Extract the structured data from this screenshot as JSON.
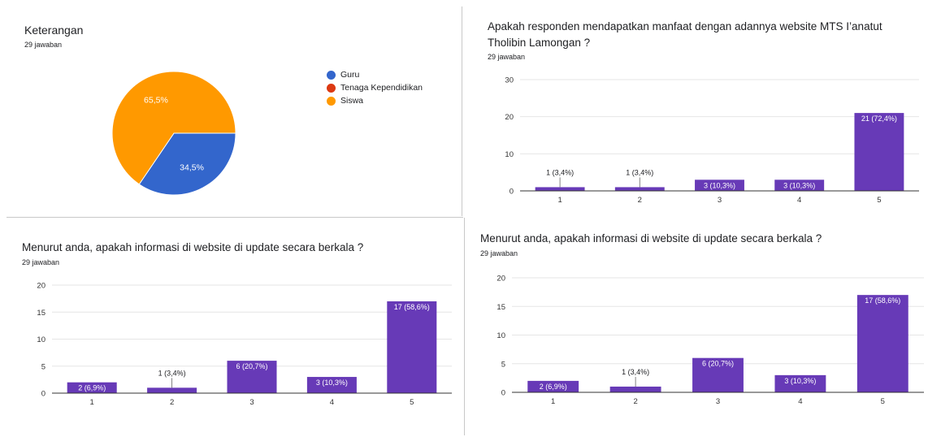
{
  "panels": [
    {
      "title": "Keterangan",
      "subtitle": "29 jawaban"
    },
    {
      "title": "Apakah responden mendapatkan manfaat dengan adannya website MTS I’anatut Tholibin Lamongan ?",
      "subtitle": "29 jawaban"
    },
    {
      "title": "Menurut anda, apakah informasi di website di update secara berkala ?",
      "subtitle": "29 jawaban"
    },
    {
      "title": "Menurut anda, apakah informasi di website di update secara berkala ?",
      "subtitle": "29 jawaban"
    }
  ],
  "colors": {
    "bar": "#673ab7",
    "guru": "#3366cc",
    "tenaga": "#dc3912",
    "siswa": "#ff9900",
    "grid": "#e6e6e6",
    "axis": "#333333"
  },
  "chart_data": [
    {
      "type": "pie",
      "categories": [
        "Guru",
        "Tenaga Kependidikan",
        "Siswa"
      ],
      "values": [
        34.5,
        0,
        65.5
      ],
      "labels": [
        "34,5%",
        "",
        "65,5%"
      ],
      "colors": [
        "#3366cc",
        "#dc3912",
        "#ff9900"
      ],
      "legend": "right"
    },
    {
      "type": "bar",
      "categories": [
        "1",
        "2",
        "3",
        "4",
        "5"
      ],
      "values": [
        1,
        1,
        3,
        3,
        21
      ],
      "labels": [
        "1 (3,4%)",
        "1 (3,4%)",
        "3 (10,3%)",
        "3 (10,3%)",
        "21 (72,4%)"
      ],
      "yticks": [
        "0",
        "10",
        "20",
        "30"
      ],
      "ylim": [
        0,
        30
      ]
    },
    {
      "type": "bar",
      "categories": [
        "1",
        "2",
        "3",
        "4",
        "5"
      ],
      "values": [
        2,
        1,
        6,
        3,
        17
      ],
      "labels": [
        "2 (6,9%)",
        "1 (3,4%)",
        "6 (20,7%)",
        "3 (10,3%)",
        "17 (58,6%)"
      ],
      "yticks": [
        "0",
        "5",
        "10",
        "15",
        "20"
      ],
      "ylim": [
        0,
        20
      ]
    },
    {
      "type": "bar",
      "categories": [
        "1",
        "2",
        "3",
        "4",
        "5"
      ],
      "values": [
        2,
        1,
        6,
        3,
        17
      ],
      "labels": [
        "2 (6,9%)",
        "1 (3,4%)",
        "6 (20,7%)",
        "3 (10,3%)",
        "17 (58,6%)"
      ],
      "yticks": [
        "0",
        "5",
        "10",
        "15",
        "20"
      ],
      "ylim": [
        0,
        20
      ]
    }
  ]
}
